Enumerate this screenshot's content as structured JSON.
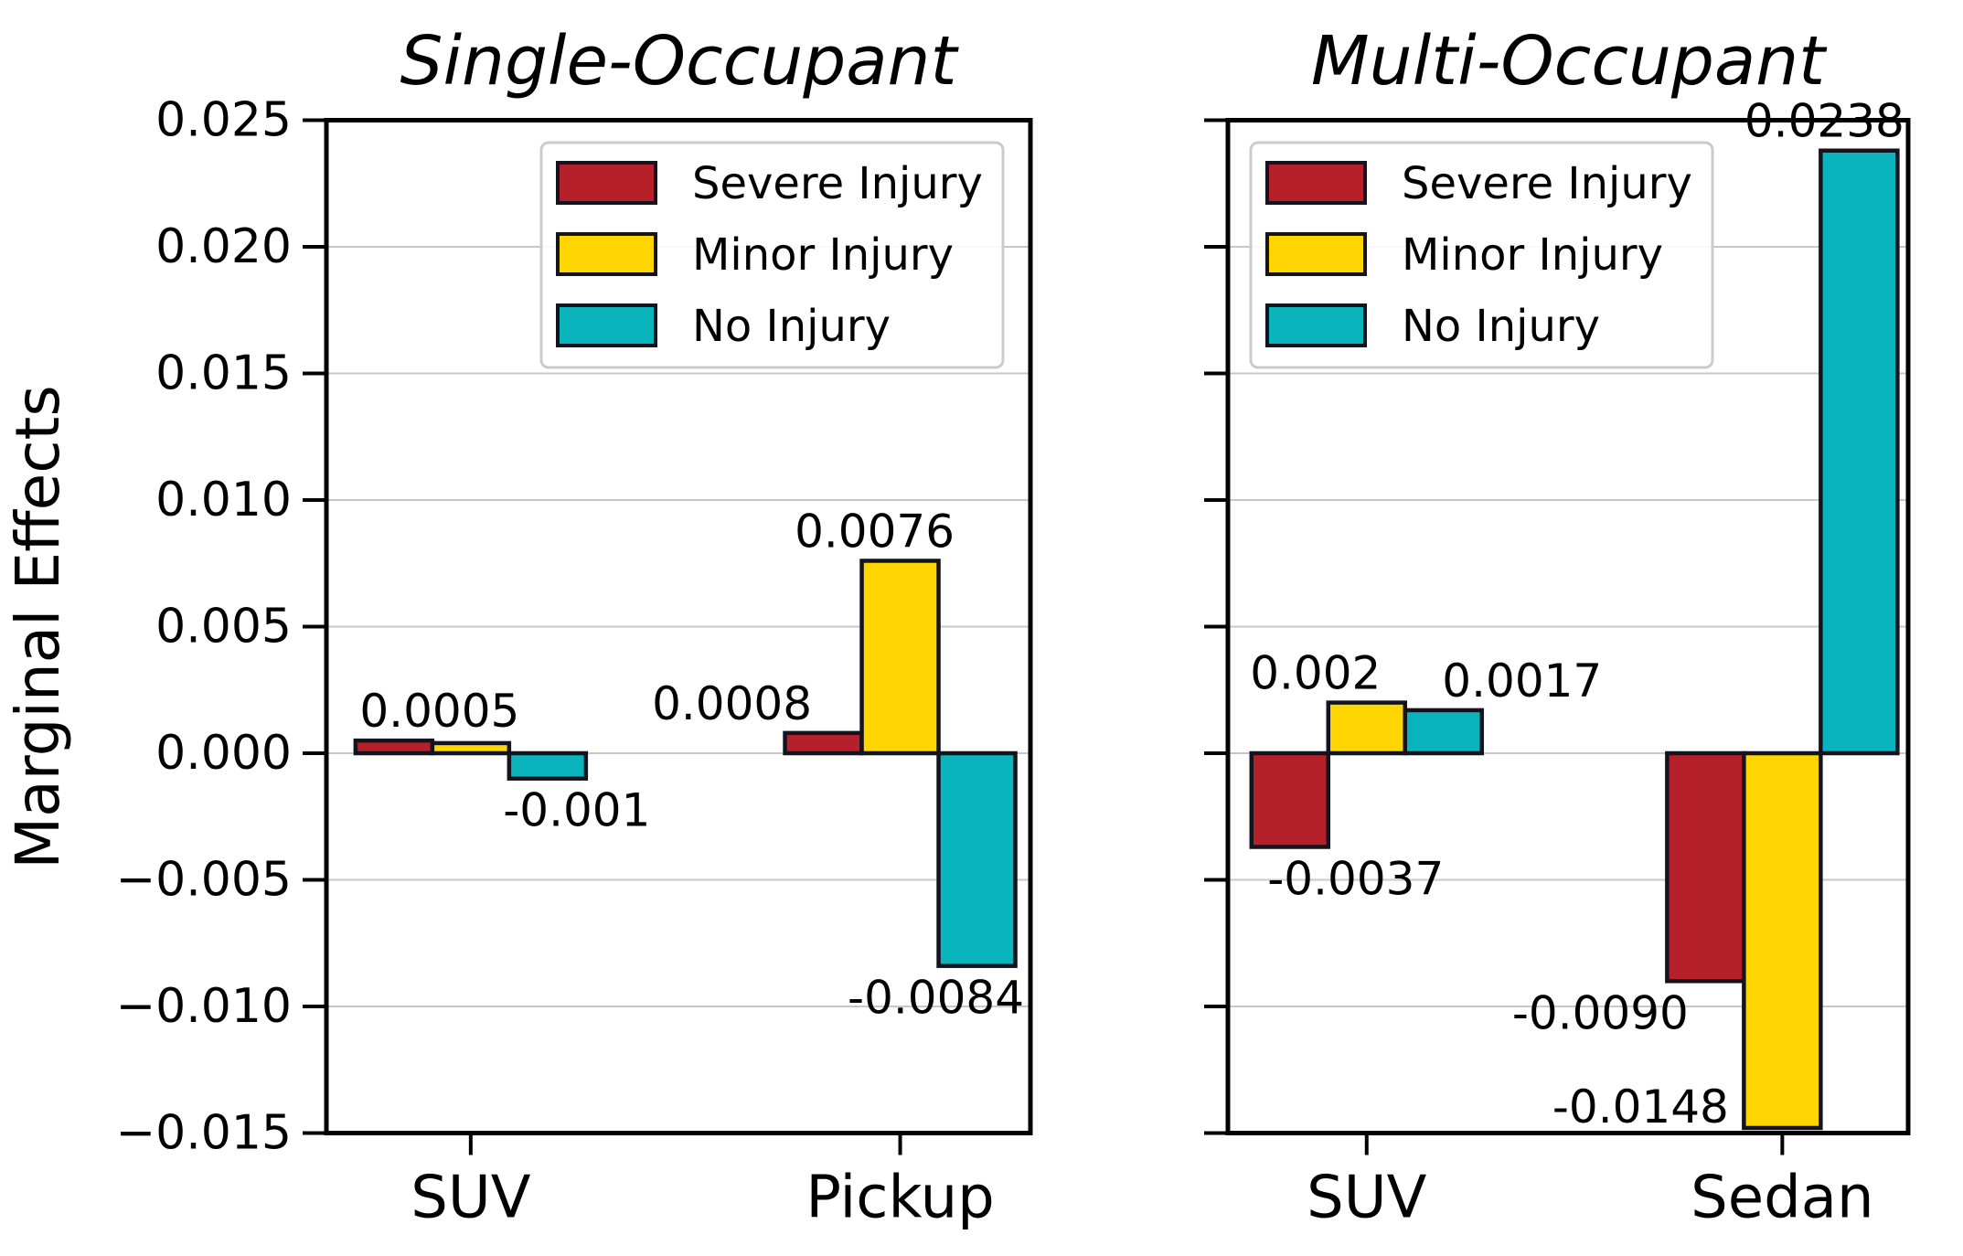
{
  "figure": {
    "ylabel": "Marginal Effects",
    "background_color": "#ffffff",
    "spine_color": "#000000",
    "grid_color": "#c8c8c8",
    "bar_edge_color": "#14141e"
  },
  "legend": {
    "items": [
      {
        "label": "Severe Injury",
        "color": "#b5202a",
        "swatch": "severe-injury-swatch"
      },
      {
        "label": "Minor Injury",
        "color": "#ffd500",
        "swatch": "minor-injury-swatch"
      },
      {
        "label": "No Injury",
        "color": "#09b4bc",
        "swatch": "no-injury-swatch"
      }
    ],
    "border_color": "#cbcbcb",
    "background_color": "#ffffff"
  },
  "ylabel": "Marginal Effects",
  "chart_data": [
    {
      "id": "single",
      "type": "bar",
      "title": "Single-Occupant",
      "categories": [
        "SUV",
        "Pickup"
      ],
      "series": [
        {
          "name": "Severe Injury",
          "color": "#b5202a",
          "values": [
            0.0005,
            0.0008
          ],
          "labels": [
            "0.0005",
            "0.0008"
          ]
        },
        {
          "name": "Minor Injury",
          "color": "#ffd500",
          "values": [
            0.0004,
            0.0076
          ],
          "labels": [
            null,
            "0.0076"
          ]
        },
        {
          "name": "No Injury",
          "color": "#09b4bc",
          "values": [
            -0.001,
            -0.0084
          ],
          "labels": [
            "-0.001",
            "-0.0084"
          ]
        }
      ],
      "xlabel": "",
      "ylabel": "Marginal Effects",
      "ylim": [
        -0.015,
        0.025
      ],
      "ytick_labels": [
        "0.025",
        "0.020",
        "0.015",
        "0.010",
        "0.005",
        "0.000",
        "−0.005",
        "−0.010",
        "−0.015"
      ],
      "show_ytick_labels": true,
      "grid": true,
      "legend_position": "upper right"
    },
    {
      "id": "multi",
      "type": "bar",
      "title": "Multi-Occupant",
      "categories": [
        "SUV",
        "Sedan"
      ],
      "series": [
        {
          "name": "Severe Injury",
          "color": "#b5202a",
          "values": [
            -0.0037,
            -0.009
          ],
          "labels": [
            "-0.0037",
            "-0.0090"
          ]
        },
        {
          "name": "Minor Injury",
          "color": "#ffd500",
          "values": [
            0.002,
            -0.0148
          ],
          "labels": [
            "0.002",
            "-0.0148"
          ]
        },
        {
          "name": "No Injury",
          "color": "#09b4bc",
          "values": [
            0.0017,
            0.0238
          ],
          "labels": [
            "0.0017",
            "0.0238"
          ]
        }
      ],
      "xlabel": "",
      "ylabel": "",
      "ylim": [
        -0.015,
        0.025
      ],
      "ytick_labels": [
        "0.025",
        "0.020",
        "0.015",
        "0.010",
        "0.005",
        "0.000",
        "−0.005",
        "−0.010",
        "−0.015"
      ],
      "show_ytick_labels": false,
      "grid": true,
      "legend_position": "upper left"
    }
  ]
}
